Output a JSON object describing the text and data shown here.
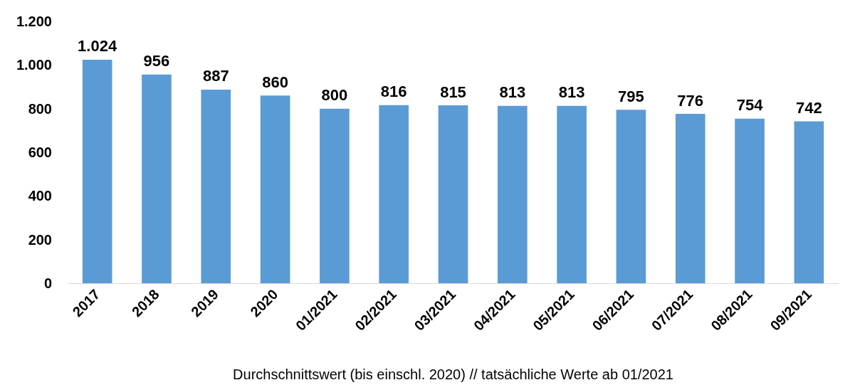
{
  "chart_data": {
    "type": "bar",
    "categories": [
      "2017",
      "2018",
      "2019",
      "2020",
      "01/2021",
      "02/2021",
      "03/2021",
      "04/2021",
      "05/2021",
      "06/2021",
      "07/2021",
      "08/2021",
      "09/2021"
    ],
    "values": [
      1024,
      956,
      887,
      860,
      800,
      816,
      815,
      813,
      813,
      795,
      776,
      754,
      742
    ],
    "value_labels": [
      "1.024",
      "956",
      "887",
      "860",
      "800",
      "816",
      "815",
      "813",
      "813",
      "795",
      "776",
      "754",
      "742"
    ],
    "color": "#5b9bd5",
    "xlabel": "Durchschnittswert (bis einschl. 2020) // tatsächliche Werte ab 01/2021",
    "ylim": [
      0,
      1200
    ],
    "yticks": [
      0,
      200,
      400,
      600,
      800,
      {
        "value": 1000,
        "label": "1.000"
      },
      {
        "value": 1200,
        "label": "1.200"
      }
    ],
    "grid": false
  }
}
